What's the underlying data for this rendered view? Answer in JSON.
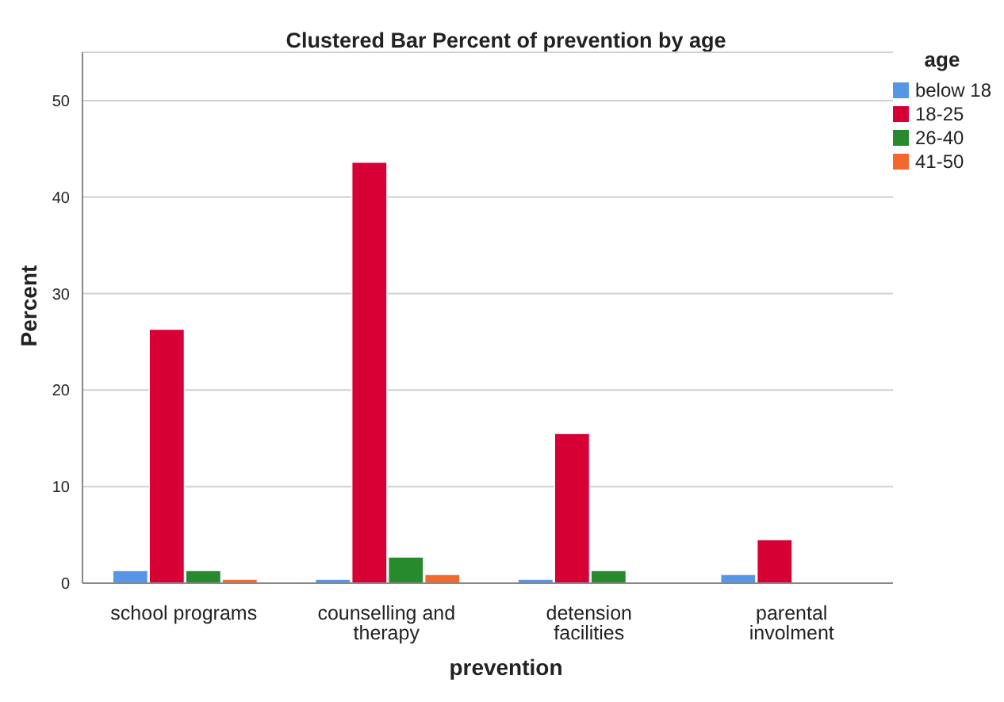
{
  "chart_data": {
    "type": "bar",
    "title": "Clustered Bar Percent of prevention by age",
    "xlabel": "prevention",
    "ylabel": "Percent",
    "legend_title": "age",
    "categories": [
      "school programs",
      "counselling and therapy",
      "detension facilities",
      "parental involment"
    ],
    "series": [
      {
        "name": "below 18",
        "color": "#5596e6",
        "values": [
          1.3,
          0.4,
          0.4,
          0.9
        ]
      },
      {
        "name": "18-25",
        "color": "#d70034",
        "values": [
          26.3,
          43.6,
          15.5,
          4.5
        ]
      },
      {
        "name": "26-40",
        "color": "#278a2c",
        "values": [
          1.3,
          2.7,
          1.3,
          null
        ]
      },
      {
        "name": "41-50",
        "color": "#f3682d",
        "values": [
          0.4,
          0.9,
          null,
          null
        ]
      }
    ],
    "ylim": [
      0,
      55
    ],
    "yticks": [
      0,
      10,
      20,
      30,
      40,
      50
    ],
    "grid": "y",
    "legend": "top right"
  }
}
